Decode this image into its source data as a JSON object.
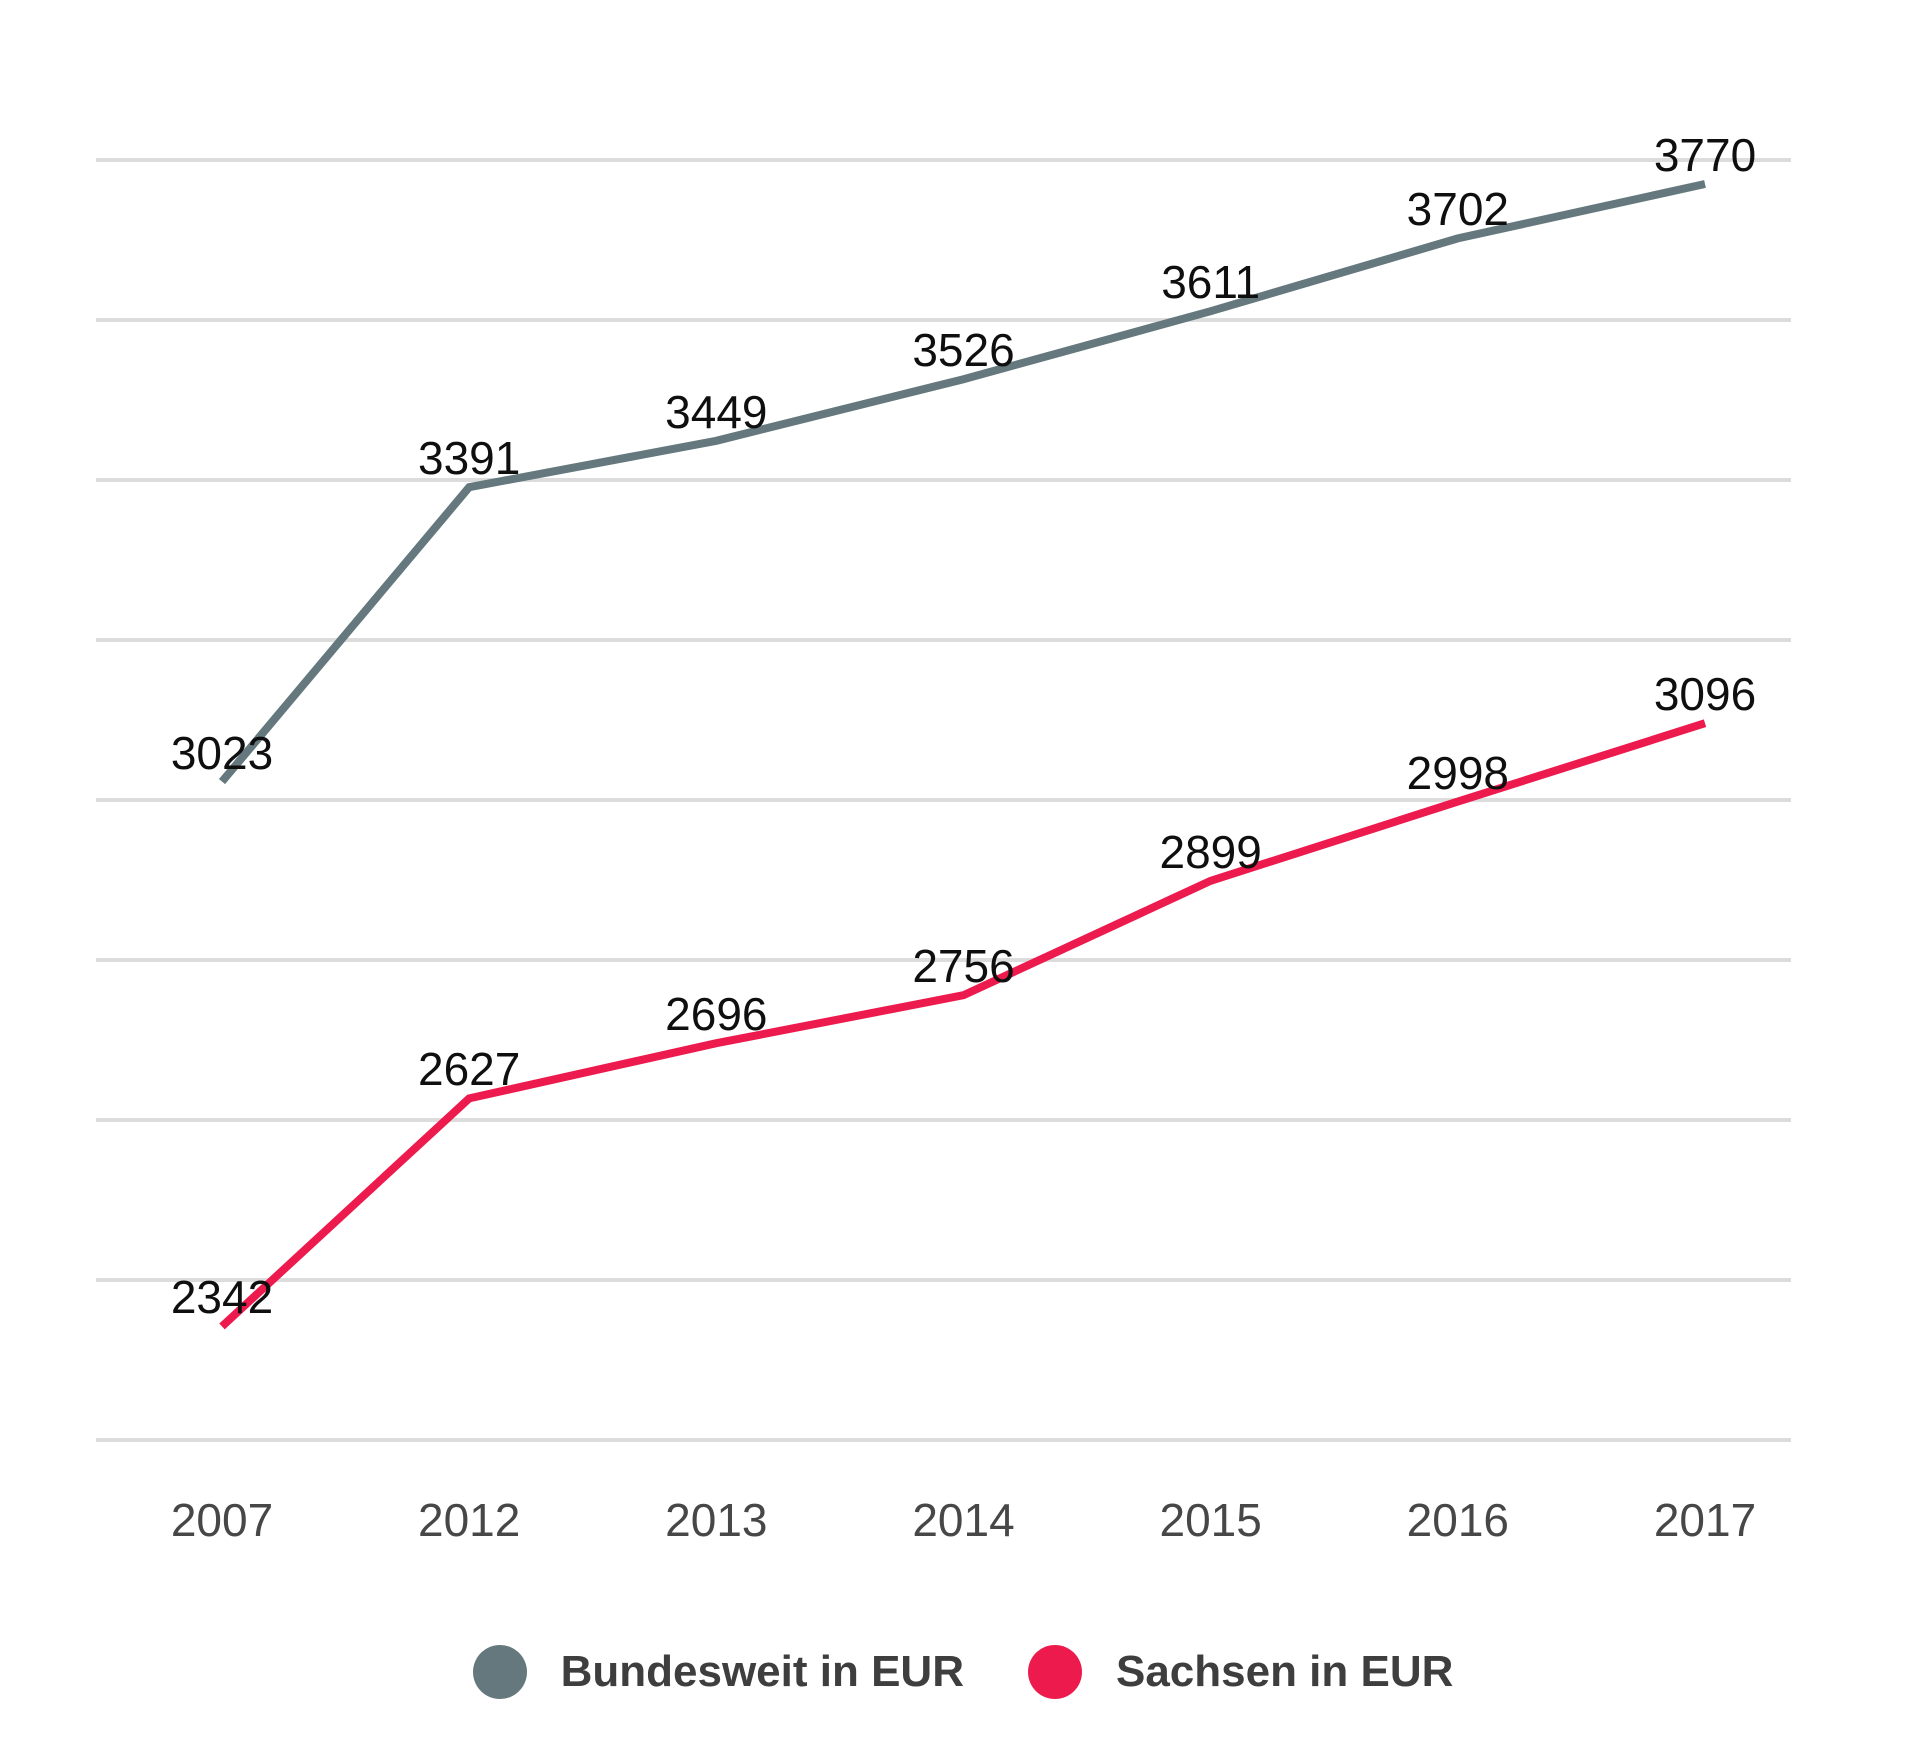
{
  "chart_data": {
    "type": "line",
    "categories": [
      "2007",
      "2012",
      "2013",
      "2014",
      "2015",
      "2016",
      "2017"
    ],
    "series": [
      {
        "name": "Bundesweit in EUR",
        "color": "#64787E",
        "values": [
          3023,
          3391,
          3449,
          3526,
          3611,
          3702,
          3770
        ]
      },
      {
        "name": "Sachsen in EUR",
        "color": "#ED1A4D",
        "values": [
          2342,
          2627,
          2696,
          2756,
          2899,
          2998,
          3096
        ]
      }
    ],
    "title": "",
    "xlabel": "",
    "ylabel": "",
    "ylim": [
      2200,
      3800
    ],
    "ygrid_step": 200,
    "grid": true,
    "gridline_color": "#dcdcdc",
    "background_color": "#ffffff",
    "value_label_color": "#0f0f0f",
    "tick_label_color": "#474747",
    "legend_position": "bottom"
  }
}
